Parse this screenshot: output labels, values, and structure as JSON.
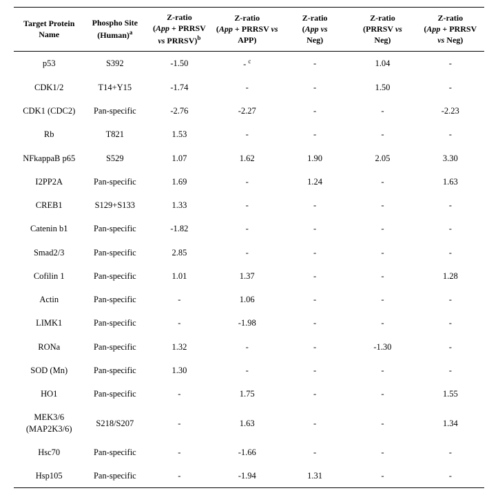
{
  "headers": {
    "protein": "Target Protein Name",
    "site_line1": "Phospho Site",
    "site_line2_prefix": "(Human)",
    "site_sup": "a",
    "z1_line1": "Z-ratio",
    "z1_line2": "(",
    "z1_italic1": "App",
    "z1_mid": " + PRRSV",
    "z1_line3_italic": "vs",
    "z1_line3_rest": "  PRRSV)",
    "z1_sup": "b",
    "z2_line1": "Z-ratio",
    "z2_line2": "(",
    "z2_italic1": "App",
    "z2_mid": " + PRRSV ",
    "z2_italic2": "vs",
    "z2_line3": "APP)",
    "z3_line1": "Z-ratio",
    "z3_line2": "(",
    "z3_italic1": "App vs",
    "z3_line3": "Neg)",
    "z4_line1": "Z-ratio",
    "z4_line2": "(PRRSV ",
    "z4_italic": "vs",
    "z4_line3": "Neg)",
    "z5_line1": "Z-ratio",
    "z5_line2": "(",
    "z5_italic1": "App",
    "z5_mid": " + PRRSV",
    "z5_line3_italic": "vs",
    "z5_line3_rest": " Neg)"
  },
  "rows": [
    {
      "protein": "p53",
      "site": "S392",
      "z1": "-1.50",
      "z2": "-",
      "z2_sup": "c",
      "z3": "-",
      "z4": "1.04",
      "z5": "-"
    },
    {
      "protein": "CDK1/2",
      "site": "T14+Y15",
      "z1": "-1.74",
      "z2": "-",
      "z3": "-",
      "z4": "1.50",
      "z5": "-"
    },
    {
      "protein": "CDK1 (CDC2)",
      "site": "Pan-specific",
      "z1": "-2.76",
      "z2": "-2.27",
      "z3": "-",
      "z4": "-",
      "z5": "-2.23"
    },
    {
      "protein": "Rb",
      "site": "T821",
      "z1": "1.53",
      "z2": "-",
      "z3": "-",
      "z4": "-",
      "z5": "-"
    },
    {
      "protein": "NFkappaB p65",
      "site": "S529",
      "z1": "1.07",
      "z2": "1.62",
      "z3": "1.90",
      "z4": "2.05",
      "z5": "3.30"
    },
    {
      "protein": "I2PP2A",
      "site": "Pan-specific",
      "z1": "1.69",
      "z2": "-",
      "z3": "1.24",
      "z4": "-",
      "z5": "1.63"
    },
    {
      "protein": "CREB1",
      "site": "S129+S133",
      "z1": "1.33",
      "z2": "-",
      "z3": "-",
      "z4": "-",
      "z5": "-"
    },
    {
      "protein": "Catenin b1",
      "site": "Pan-specific",
      "z1": "-1.82",
      "z2": "-",
      "z3": "-",
      "z4": "-",
      "z5": "-"
    },
    {
      "protein": "Smad2/3",
      "site": "Pan-specific",
      "z1": "2.85",
      "z2": "-",
      "z3": "-",
      "z4": "-",
      "z5": "-"
    },
    {
      "protein": "Cofilin 1",
      "site": "Pan-specific",
      "z1": "1.01",
      "z2": "1.37",
      "z3": "-",
      "z4": "-",
      "z5": "1.28"
    },
    {
      "protein": "Actin",
      "site": "Pan-specific",
      "z1": "-",
      "z2": "1.06",
      "z3": "-",
      "z4": "-",
      "z5": "-"
    },
    {
      "protein": "LIMK1",
      "site": "Pan-specific",
      "z1": "-",
      "z2": "-1.98",
      "z3": "-",
      "z4": "-",
      "z5": "-"
    },
    {
      "protein": "RONa",
      "site": "Pan-specific",
      "z1": "1.32",
      "z2": "-",
      "z3": "-",
      "z4": "-1.30",
      "z5": "-"
    },
    {
      "protein": "SOD (Mn)",
      "site": "Pan-specific",
      "z1": "1.30",
      "z2": "-",
      "z3": "-",
      "z4": "-",
      "z5": "-"
    },
    {
      "protein": "HO1",
      "site": "Pan-specific",
      "z1": "-",
      "z2": "1.75",
      "z3": "-",
      "z4": "-",
      "z5": "1.55"
    },
    {
      "protein_line1": "MEK3/6",
      "protein_line2": "(MAP2K3/6)",
      "site": "S218/S207",
      "z1": "-",
      "z2": "1.63",
      "z3": "-",
      "z4": "-",
      "z5": "1.34"
    },
    {
      "protein": "Hsc70",
      "site": "Pan-specific",
      "z1": "-",
      "z2": "-1.66",
      "z3": "-",
      "z4": "-",
      "z5": "-"
    },
    {
      "protein": "Hsp105",
      "site": "Pan-specific",
      "z1": "-",
      "z2": "-1.94",
      "z3": "1.31",
      "z4": "-",
      "z5": "-"
    }
  ]
}
